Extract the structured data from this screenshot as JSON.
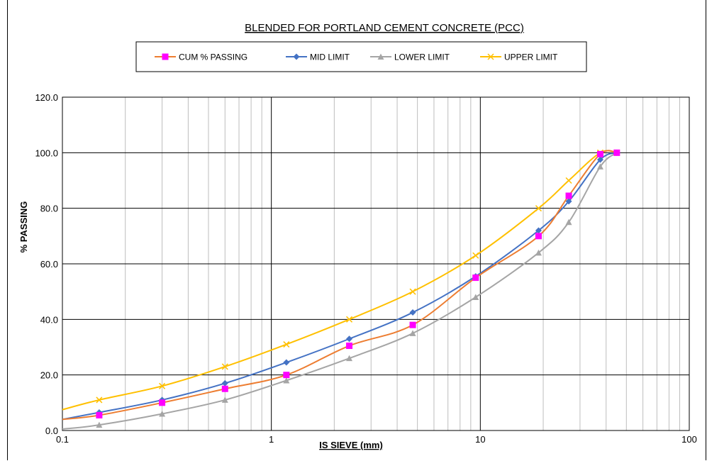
{
  "chart_data": {
    "type": "line",
    "title": "BLENDED FOR PORTLAND CEMENT CONCRETE (PCC)",
    "xlabel": "IS SIEVE (mm)",
    "ylabel": "% PASSING",
    "x_scale": "log",
    "xlim": [
      0.1,
      100
    ],
    "ylim": [
      0,
      120
    ],
    "x_ticks": [
      {
        "value": 0.1,
        "label": "0.1"
      },
      {
        "value": 1,
        "label": "1"
      },
      {
        "value": 10,
        "label": "10"
      },
      {
        "value": 100,
        "label": "100"
      }
    ],
    "y_ticks": [
      {
        "value": 0,
        "label": "0.0"
      },
      {
        "value": 20,
        "label": "20.0"
      },
      {
        "value": 40,
        "label": "40.0"
      },
      {
        "value": 60,
        "label": "60.0"
      },
      {
        "value": 80,
        "label": "80.0"
      },
      {
        "value": 100,
        "label": "100.0"
      },
      {
        "value": 120,
        "label": "120.0"
      }
    ],
    "grid": true,
    "legend_position": "top-center",
    "series": [
      {
        "name": "CUM % PASSING",
        "color": "#ED7D31",
        "marker": "square",
        "marker_color": "#FF00FF",
        "x": [
          0.15,
          0.3,
          0.6,
          1.18,
          2.36,
          4.75,
          9.5,
          19,
          26.5,
          37.5,
          45
        ],
        "y": [
          5.5,
          10,
          15,
          20,
          30.5,
          38,
          55,
          70,
          84.5,
          99.5,
          100
        ],
        "line_start": [
          0.1,
          4
        ]
      },
      {
        "name": "MID LIMIT",
        "color": "#4472C4",
        "marker": "diamond",
        "marker_color": "#4472C4",
        "x": [
          0.15,
          0.3,
          0.6,
          1.18,
          2.36,
          4.75,
          9.5,
          19,
          26.5,
          37.5,
          45
        ],
        "y": [
          6.5,
          11,
          17,
          24.5,
          33,
          42.5,
          55.5,
          72,
          82.5,
          97.5,
          100
        ],
        "line_start": [
          0.1,
          4
        ]
      },
      {
        "name": "LOWER LIMIT",
        "color": "#A5A5A5",
        "marker": "triangle",
        "marker_color": "#A5A5A5",
        "x": [
          0.15,
          0.3,
          0.6,
          1.18,
          2.36,
          4.75,
          9.5,
          19,
          26.5,
          37.5,
          45
        ],
        "y": [
          2,
          6,
          11,
          18,
          26,
          35,
          48,
          64,
          75,
          95,
          100
        ],
        "line_start": [
          0.1,
          0.5
        ]
      },
      {
        "name": "UPPER LIMIT",
        "color": "#FFC000",
        "marker": "x",
        "marker_color": "#FFC000",
        "x": [
          0.15,
          0.3,
          0.6,
          1.18,
          2.36,
          4.75,
          9.5,
          19,
          26.5,
          37.5,
          45
        ],
        "y": [
          11,
          16,
          23,
          31,
          40,
          50,
          63,
          80,
          90,
          100,
          100
        ],
        "line_start": [
          0.1,
          7.5
        ]
      }
    ]
  }
}
